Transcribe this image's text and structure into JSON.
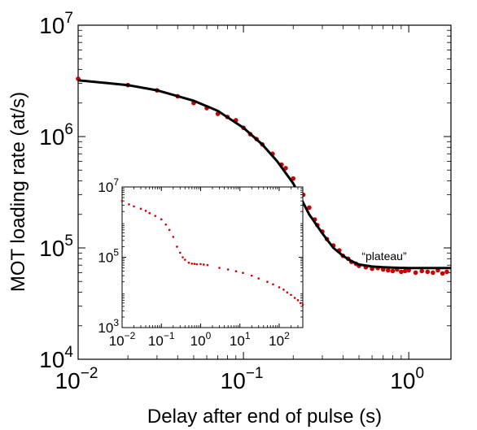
{
  "chart_data": [
    {
      "type": "scatter",
      "xlabel": "Delay after end of pulse (s)",
      "ylabel": "MOT loading rate  (at/s)",
      "annotation": "“plateau”",
      "x_scale": "log",
      "y_scale": "log",
      "xlim": [
        0.01,
        1.8
      ],
      "ylim": [
        10000,
        10000000
      ],
      "x_ticks": [
        {
          "value": 0.01,
          "base": "10",
          "exp": "−2"
        },
        {
          "value": 0.1,
          "base": "10",
          "exp": "−1"
        },
        {
          "value": 1,
          "base": "10",
          "exp": "0"
        }
      ],
      "y_ticks": [
        {
          "value": 10000,
          "base": "10",
          "exp": "4"
        },
        {
          "value": 100000,
          "base": "10",
          "exp": "5"
        },
        {
          "value": 1000000,
          "base": "10",
          "exp": "6"
        },
        {
          "value": 10000000,
          "base": "10",
          "exp": "7"
        }
      ],
      "grid": false,
      "colors": {
        "points": "#cc0000",
        "fit": "#000000"
      },
      "series": [
        {
          "kind": "points",
          "x": [
            0.01,
            0.02,
            0.03,
            0.04,
            0.05,
            0.06,
            0.07,
            0.08,
            0.09,
            0.1,
            0.11,
            0.12,
            0.13,
            0.15,
            0.17,
            0.18,
            0.2,
            0.22,
            0.23,
            0.25,
            0.27,
            0.28,
            0.3,
            0.32,
            0.35,
            0.38,
            0.4,
            0.43,
            0.45,
            0.48,
            0.5,
            0.55,
            0.6,
            0.65,
            0.7,
            0.75,
            0.8,
            0.85,
            0.9,
            0.95,
            1.0,
            1.1,
            1.2,
            1.3,
            1.4,
            1.5,
            1.6,
            1.7
          ],
          "y": [
            3300000,
            2900000,
            2600000,
            2300000,
            2000000,
            1800000,
            1600000,
            1500000,
            1400000,
            1200000,
            1050000,
            950000,
            850000,
            700000,
            560000,
            520000,
            420000,
            330000,
            300000,
            230000,
            180000,
            160000,
            140000,
            120000,
            105000,
            95000,
            85000,
            80000,
            75000,
            72000,
            69000,
            67000,
            65000,
            66000,
            64000,
            63000,
            62000,
            64000,
            61000,
            62000,
            63000,
            60000,
            62000,
            61000,
            60000,
            63000,
            59000,
            61000
          ]
        },
        {
          "kind": "fit",
          "x": [
            0.01,
            0.02,
            0.03,
            0.05,
            0.07,
            0.1,
            0.13,
            0.16,
            0.2,
            0.25,
            0.3,
            0.35,
            0.4,
            0.45,
            0.5,
            0.6,
            0.7,
            0.8,
            1.0,
            1.3,
            1.8
          ],
          "y": [
            3200000,
            2900000,
            2600000,
            2100000,
            1700000,
            1200000,
            850000,
            600000,
            380000,
            200000,
            135000,
            100000,
            85000,
            76000,
            71000,
            68000,
            67000,
            66500,
            66000,
            66000,
            66000
          ]
        }
      ]
    },
    {
      "type": "scatter",
      "placement": "inset-lower-left",
      "x_scale": "log",
      "y_scale": "log",
      "xlim": [
        0.01,
        400
      ],
      "ylim": [
        1000,
        10000000
      ],
      "x_ticks": [
        {
          "value": 0.01,
          "base": "10",
          "exp": "−2"
        },
        {
          "value": 0.1,
          "base": "10",
          "exp": "−1"
        },
        {
          "value": 1,
          "base": "10",
          "exp": "0"
        },
        {
          "value": 10,
          "base": "10",
          "exp": "1"
        },
        {
          "value": 100,
          "base": "10",
          "exp": "2"
        }
      ],
      "y_ticks": [
        {
          "value": 1000,
          "base": "10",
          "exp": "3"
        },
        {
          "value": 100000,
          "base": "10",
          "exp": "5"
        },
        {
          "value": 10000000,
          "base": "10",
          "exp": "7"
        }
      ],
      "grid": false,
      "colors": {
        "points": "#cc0000"
      },
      "series": [
        {
          "kind": "points",
          "x": [
            0.01,
            0.015,
            0.02,
            0.03,
            0.04,
            0.05,
            0.07,
            0.1,
            0.13,
            0.16,
            0.2,
            0.25,
            0.3,
            0.35,
            0.4,
            0.5,
            0.6,
            0.7,
            0.8,
            1.0,
            1.2,
            1.5,
            3,
            5,
            8,
            12,
            20,
            30,
            50,
            70,
            100,
            130,
            160,
            200,
            250,
            300,
            350,
            400
          ],
          "y": [
            4000000,
            3200000,
            2800000,
            2400000,
            2100000,
            1800000,
            1500000,
            1200000,
            850000,
            600000,
            380000,
            200000,
            135000,
            100000,
            85000,
            70000,
            66000,
            65000,
            63000,
            64000,
            62000,
            60000,
            50000,
            45000,
            40000,
            36000,
            30000,
            25000,
            20000,
            17000,
            14000,
            12000,
            10000,
            8500,
            7000,
            6000,
            5000,
            4500
          ]
        }
      ]
    }
  ]
}
